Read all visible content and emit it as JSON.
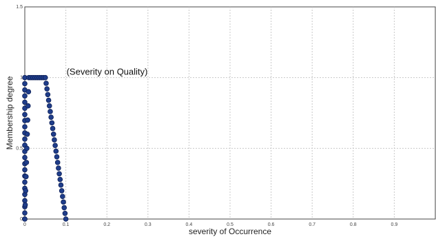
{
  "chart_data": {
    "type": "scatter",
    "title": "",
    "xlabel": "severity of Occurrence",
    "ylabel": "Membership degree",
    "xlim": [
      0,
      1
    ],
    "ylim": [
      0,
      1.5
    ],
    "grid": true,
    "x_ticks": [
      0,
      0.1,
      0.2,
      0.3,
      0.4,
      0.5,
      0.6,
      0.7,
      0.8,
      0.9
    ],
    "x_tick_labels": [
      "0",
      "0.1",
      "0.2",
      "0.3",
      "0.4",
      "0.5",
      "0.6",
      "0.7",
      "0.8",
      "0.9"
    ],
    "y_ticks": [
      0,
      0.5,
      1,
      1.5
    ],
    "y_tick_labels": [
      "0",
      "0.5",
      "1",
      "1.5"
    ],
    "annotation": {
      "text": "(Severity on Quality)",
      "x": 0.1,
      "y": 1
    },
    "series": [
      {
        "marker_color": "#1f3d8a",
        "shape": "trapezoid",
        "x": [
          0,
          0,
          0,
          0,
          0,
          0,
          0,
          0,
          0,
          0,
          0,
          0,
          0,
          0,
          0,
          0,
          0,
          0,
          0,
          0,
          0,
          0,
          0,
          0,
          0.0,
          0.001,
          0.002,
          0.003,
          0.004,
          0.005,
          0.006,
          0.007,
          0.008,
          0.009,
          0.01,
          0.015,
          0.02,
          0.025,
          0.03,
          0.035,
          0.04,
          0.045,
          0.05,
          0.052,
          0.054,
          0.056,
          0.058,
          0.06,
          0.062,
          0.064,
          0.066,
          0.068,
          0.07,
          0.072,
          0.074,
          0.076,
          0.078,
          0.08,
          0.082,
          0.084,
          0.086,
          0.088,
          0.09,
          0.092,
          0.094,
          0.096,
          0.098,
          0.1
        ],
        "y": [
          0,
          0.043,
          0.087,
          0.13,
          0.174,
          0.217,
          0.261,
          0.304,
          0.348,
          0.391,
          0.435,
          0.478,
          0.522,
          0.565,
          0.609,
          0.652,
          0.696,
          0.739,
          0.783,
          0.826,
          0.87,
          0.913,
          0.957,
          1,
          0,
          0.1,
          0.2,
          0.3,
          0.4,
          0.5,
          0.6,
          0.7,
          0.8,
          0.9,
          1,
          1,
          1,
          1,
          1,
          1,
          1,
          1,
          1,
          0.96,
          0.92,
          0.88,
          0.84,
          0.8,
          0.76,
          0.72,
          0.68,
          0.64,
          0.6,
          0.56,
          0.52,
          0.48,
          0.44,
          0.4,
          0.36,
          0.32,
          0.28,
          0.24,
          0.2,
          0.16,
          0.12,
          0.08,
          0.04,
          0
        ]
      }
    ]
  }
}
